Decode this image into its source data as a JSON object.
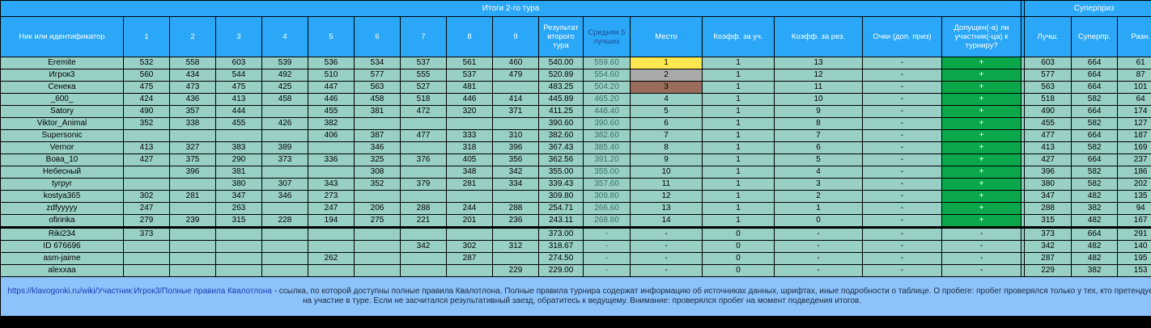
{
  "title": "Итоги 2-го тура",
  "superprize_title": "Суперприз",
  "headers": {
    "nick": "Ник или идентификатор",
    "tours": [
      "1",
      "2",
      "3",
      "4",
      "5",
      "6",
      "7",
      "8",
      "9"
    ],
    "result": "Результат второго тура",
    "avg5": "Средняя 5 лучших",
    "place": "Место",
    "coef_part": "Коэфф. за уч.",
    "coef_res": "Коэфф. за рез.",
    "points": "Очки (доп. приз)",
    "admitted": "Допущен(-а) ли участник(-ца) к турниру?",
    "best": "Лучш.",
    "superprize": "Суперпр.",
    "diff": "Разн."
  },
  "rows": [
    {
      "nick": "Eremite",
      "s": [
        "532",
        "558",
        "603",
        "539",
        "536",
        "534",
        "537",
        "561",
        "460"
      ],
      "result": "540.00",
      "avg": "559.60",
      "place": "1",
      "cu": "1",
      "cr": "13",
      "pts": "-",
      "adm": "+",
      "best": "603",
      "sp": "664",
      "diff": "61"
    },
    {
      "nick": "Игрок3",
      "s": [
        "560",
        "434",
        "544",
        "492",
        "510",
        "577",
        "555",
        "537",
        "479"
      ],
      "result": "520.89",
      "avg": "554.60",
      "place": "2",
      "cu": "1",
      "cr": "12",
      "pts": "-",
      "adm": "+",
      "best": "577",
      "sp": "664",
      "diff": "87"
    },
    {
      "nick": "Сенека",
      "s": [
        "475",
        "473",
        "475",
        "425",
        "447",
        "563",
        "527",
        "481",
        ""
      ],
      "result": "483.25",
      "avg": "504.20",
      "place": "3",
      "cu": "1",
      "cr": "11",
      "pts": "-",
      "adm": "+",
      "best": "563",
      "sp": "664",
      "diff": "101"
    },
    {
      "nick": "_600_",
      "s": [
        "424",
        "436",
        "413",
        "458",
        "446",
        "458",
        "518",
        "446",
        "414"
      ],
      "result": "445.89",
      "avg": "465.20",
      "place": "4",
      "cu": "1",
      "cr": "10",
      "pts": "-",
      "adm": "+",
      "best": "518",
      "sp": "582",
      "diff": "64"
    },
    {
      "nick": "Satory",
      "s": [
        "490",
        "357",
        "444",
        "",
        "455",
        "381",
        "472",
        "320",
        "371"
      ],
      "result": "411.25",
      "avg": "448.40",
      "place": "5",
      "cu": "1",
      "cr": "9",
      "pts": "-",
      "adm": "+",
      "best": "490",
      "sp": "664",
      "diff": "174"
    },
    {
      "nick": "Viktor_Animal",
      "s": [
        "352",
        "338",
        "455",
        "426",
        "382",
        "",
        "",
        "",
        ""
      ],
      "result": "390.60",
      "avg": "390.60",
      "place": "6",
      "cu": "1",
      "cr": "8",
      "pts": "-",
      "adm": "+",
      "best": "455",
      "sp": "582",
      "diff": "127"
    },
    {
      "nick": "Supersonic",
      "s": [
        "",
        "",
        "",
        "",
        "406",
        "387",
        "477",
        "333",
        "310"
      ],
      "result": "382.60",
      "avg": "382.60",
      "place": "7",
      "cu": "1",
      "cr": "7",
      "pts": "-",
      "adm": "+",
      "best": "477",
      "sp": "664",
      "diff": "187"
    },
    {
      "nick": "Vernor",
      "s": [
        "413",
        "327",
        "383",
        "389",
        "",
        "346",
        "",
        "318",
        "396"
      ],
      "result": "367.43",
      "avg": "385.40",
      "place": "8",
      "cu": "1",
      "cr": "6",
      "pts": "-",
      "adm": "+",
      "best": "413",
      "sp": "582",
      "diff": "169"
    },
    {
      "nick": "Вова_10",
      "s": [
        "427",
        "375",
        "290",
        "373",
        "336",
        "325",
        "376",
        "405",
        "356"
      ],
      "result": "362.56",
      "avg": "391.20",
      "place": "9",
      "cu": "1",
      "cr": "5",
      "pts": "-",
      "adm": "+",
      "best": "427",
      "sp": "664",
      "diff": "237"
    },
    {
      "nick": "Небесный",
      "s": [
        "",
        "396",
        "381",
        "",
        "",
        "308",
        "",
        "348",
        "342"
      ],
      "result": "355.00",
      "avg": "355.00",
      "place": "10",
      "cu": "1",
      "cr": "4",
      "pts": "-",
      "adm": "+",
      "best": "396",
      "sp": "582",
      "diff": "186"
    },
    {
      "nick": "tyrpyr",
      "s": [
        "",
        "",
        "380",
        "307",
        "343",
        "352",
        "379",
        "281",
        "334"
      ],
      "result": "339.43",
      "avg": "357.60",
      "place": "11",
      "cu": "1",
      "cr": "3",
      "pts": "-",
      "adm": "+",
      "best": "380",
      "sp": "582",
      "diff": "202"
    },
    {
      "nick": "kostya365",
      "s": [
        "302",
        "281",
        "347",
        "346",
        "273",
        "",
        "",
        "",
        ""
      ],
      "result": "309.80",
      "avg": "309.80",
      "place": "12",
      "cu": "1",
      "cr": "2",
      "pts": "-",
      "adm": "+",
      "best": "347",
      "sp": "482",
      "diff": "135"
    },
    {
      "nick": "zdfyyyyy",
      "s": [
        "247",
        "",
        "263",
        "",
        "247",
        "206",
        "288",
        "244",
        "288"
      ],
      "result": "254.71",
      "avg": "266.60",
      "place": "13",
      "cu": "1",
      "cr": "1",
      "pts": "-",
      "adm": "+",
      "best": "288",
      "sp": "382",
      "diff": "94"
    },
    {
      "nick": "ofirinka",
      "s": [
        "279",
        "239",
        "315",
        "228",
        "194",
        "275",
        "221",
        "201",
        "236"
      ],
      "result": "243.11",
      "avg": "268.80",
      "place": "14",
      "cu": "1",
      "cr": "0",
      "pts": "-",
      "adm": "+",
      "best": "315",
      "sp": "482",
      "diff": "167"
    },
    {
      "nick": "Riki234",
      "s": [
        "373",
        "",
        "",
        "",
        "",
        "",
        "",
        "",
        ""
      ],
      "result": "373.00",
      "avg": "-",
      "place": "-",
      "cu": "0",
      "cr": "-",
      "pts": "-",
      "adm": "-",
      "best": "373",
      "sp": "664",
      "diff": "291"
    },
    {
      "nick": "ID 676696",
      "s": [
        "",
        "",
        "",
        "",
        "",
        "",
        "342",
        "302",
        "312"
      ],
      "result": "318.67",
      "avg": "-",
      "place": "-",
      "cu": "0",
      "cr": "-",
      "pts": "-",
      "adm": "-",
      "best": "342",
      "sp": "482",
      "diff": "140"
    },
    {
      "nick": "asm-jaime",
      "s": [
        "",
        "",
        "",
        "",
        "262",
        "",
        "",
        "287",
        ""
      ],
      "result": "274.50",
      "avg": "-",
      "place": "-",
      "cu": "0",
      "cr": "-",
      "pts": "-",
      "adm": "-",
      "best": "287",
      "sp": "482",
      "diff": "195"
    },
    {
      "nick": "alexxaa",
      "s": [
        "",
        "",
        "",
        "",
        "",
        "",
        "",
        "",
        "229"
      ],
      "result": "229.00",
      "avg": "-",
      "place": "-",
      "cu": "0",
      "cr": "-",
      "pts": "-",
      "adm": "-",
      "best": "229",
      "sp": "382",
      "diff": "153"
    }
  ],
  "footer": {
    "link": "https://klavogonki.ru/wiki/Участник:Игрок3/Полные правила Квалотлона",
    "text": " - ссылка, по которой доступны полные правила Квалотлона. Полные правила турнира содержат информацию об источниках данных, шрифтах, иные подробности о таблице. О пробеге: пробег проверялся только у тех, кто претендует на участие в туре. Если не засчитался результативный заезд, обратитесь к ведущему. Внимание: проверялся пробег на момент подведения итогов."
  },
  "colors": {
    "header": "#2aa7f7",
    "body": "#99d0c6",
    "gold": "#ffe84f",
    "silver": "#aaaaaa",
    "bronze": "#9a6c5b",
    "admitted": "#0aa84a",
    "footer": "#8dc2fb"
  }
}
